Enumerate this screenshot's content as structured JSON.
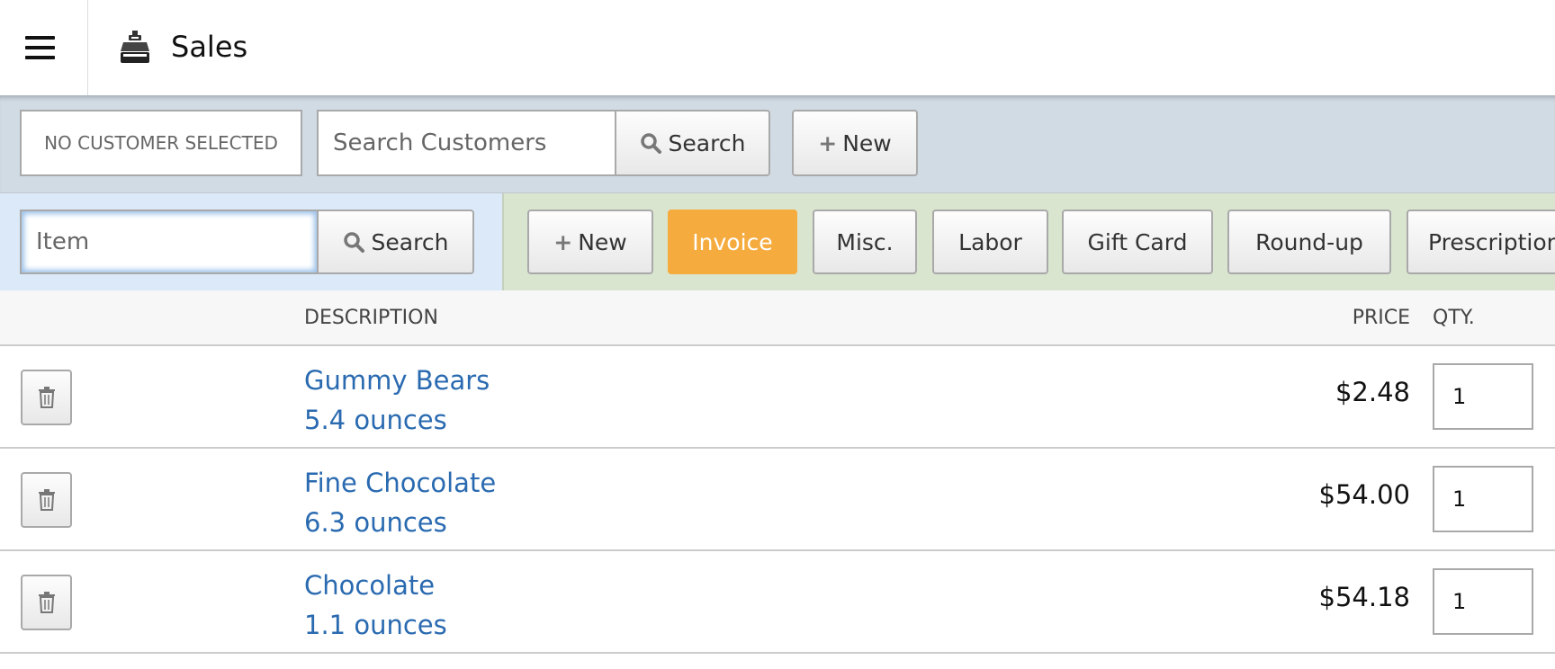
{
  "header": {
    "title": "Sales",
    "menu_icon": "hamburger-icon",
    "title_icon": "cash-register-icon"
  },
  "customer_bar": {
    "selected": "NO CUSTOMER SELECTED",
    "search_placeholder": "Search Customers",
    "search_button": "Search",
    "new_button": "New"
  },
  "item_bar": {
    "item_placeholder": "Item",
    "search_button": "Search",
    "buttons": [
      {
        "label": "New",
        "icon": "plus-icon"
      },
      {
        "label": "Invoice",
        "active": true
      },
      {
        "label": "Misc."
      },
      {
        "label": "Labor"
      },
      {
        "label": "Gift Card"
      },
      {
        "label": "Round-up"
      },
      {
        "label": "Prescription"
      }
    ]
  },
  "table": {
    "columns": {
      "description": "DESCRIPTION",
      "price": "PRICE",
      "qty": "QTY."
    },
    "rows": [
      {
        "name": "Gummy Bears",
        "size": "5.4 ounces",
        "price": "$2.48",
        "qty": "1"
      },
      {
        "name": "Fine Chocolate",
        "size": "6.3 ounces",
        "price": "$54.00",
        "qty": "1"
      },
      {
        "name": "Chocolate",
        "size": "1.1 ounces",
        "price": "$54.18",
        "qty": "1"
      }
    ]
  },
  "colors": {
    "accent": "#f5ab3e",
    "link": "#2a6ab0",
    "customer_bar": "#d1dbe4",
    "item_bar_left": "#dbe9f9",
    "item_bar_right": "#d9e5cf"
  }
}
